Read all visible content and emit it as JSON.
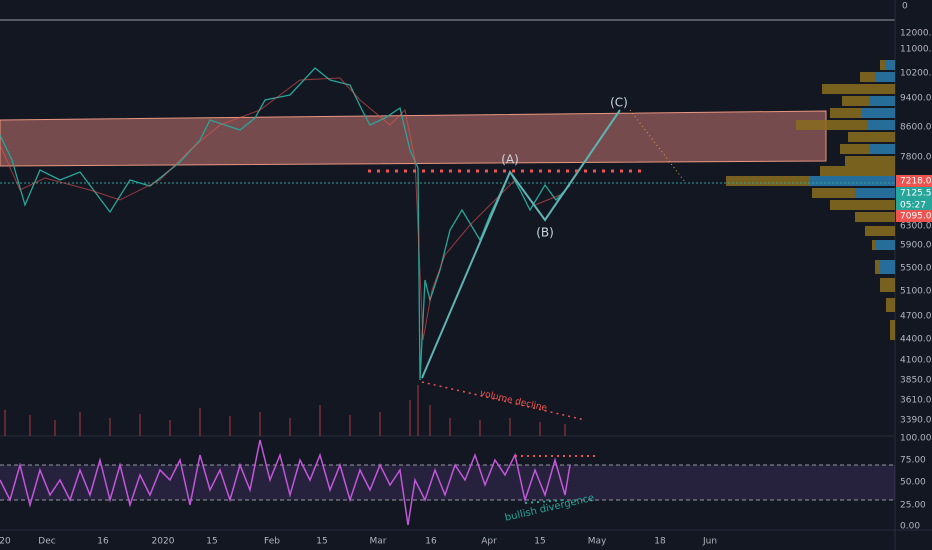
{
  "price_axis": {
    "labels": [
      "0",
      "12000.0",
      "11000.0",
      "10200.0",
      "9400.0",
      "8600.0",
      "7800.0",
      "6300.0",
      "5900.0",
      "5500.0",
      "5100.0",
      "4700.0",
      "4400.0",
      "4100.0",
      "3850.0",
      "3610.0",
      "3390.0"
    ],
    "tags": [
      "7218.0",
      "7125.5",
      "05:27",
      "7095.0"
    ]
  },
  "rsi_axis": {
    "labels": [
      "100.00",
      "75.00",
      "50.00",
      "25.00",
      "0.00"
    ]
  },
  "time_axis": {
    "labels": [
      "20",
      "Dec",
      "16",
      "2020",
      "15",
      "Feb",
      "15",
      "Mar",
      "16",
      "Apr",
      "15",
      "May",
      "18",
      "Jun"
    ]
  },
  "annotations": {
    "wave_a": "(A)",
    "wave_b": "(B)",
    "wave_c": "(C)",
    "volume": "volume decline",
    "divergence": "bullish divergence"
  }
}
